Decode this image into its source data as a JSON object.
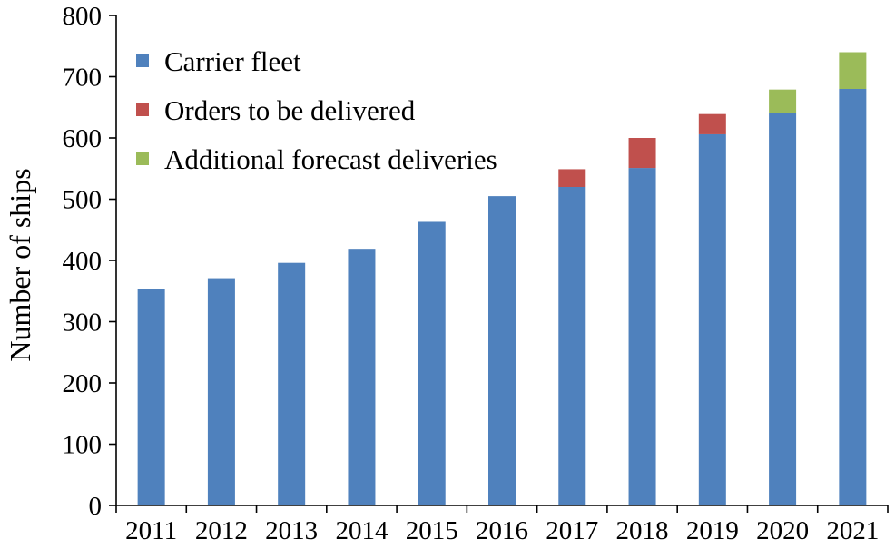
{
  "chart_data": {
    "type": "bar",
    "stacked": true,
    "ylabel": "Number of ships",
    "xlabel": "",
    "ylim": [
      0,
      800
    ],
    "yticks": [
      0,
      100,
      200,
      300,
      400,
      500,
      600,
      700,
      800
    ],
    "categories": [
      "2011",
      "2012",
      "2013",
      "2014",
      "2015",
      "2016",
      "2017",
      "2018",
      "2019",
      "2020",
      "2021"
    ],
    "grid": false,
    "legend_position": "top-left",
    "series": [
      {
        "name": "Carrier fleet",
        "color": "#4F81BD",
        "values": [
          353,
          371,
          396,
          419,
          463,
          505,
          520,
          551,
          606,
          641,
          680
        ]
      },
      {
        "name": "Orders to be delivered",
        "color": "#C0504D",
        "values": [
          0,
          0,
          0,
          0,
          0,
          0,
          29,
          49,
          33,
          0,
          0
        ]
      },
      {
        "name": "Additional forecast deliveries",
        "color": "#9BBB59",
        "values": [
          0,
          0,
          0,
          0,
          0,
          0,
          0,
          0,
          0,
          38,
          60
        ]
      }
    ]
  }
}
